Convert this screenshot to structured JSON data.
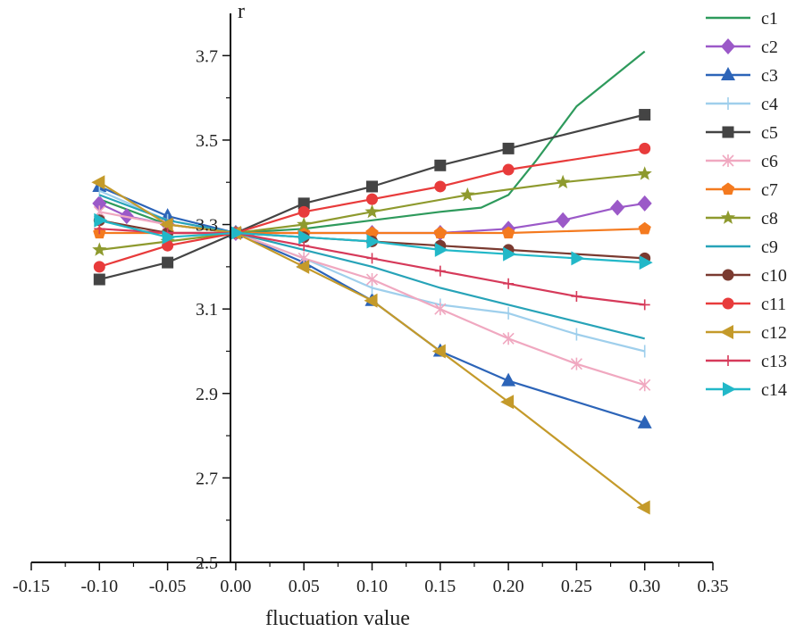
{
  "chart_data": {
    "type": "line",
    "title": "",
    "xlabel": "fluctuation value",
    "ylabel": "r",
    "xlim": [
      -0.15,
      0.35
    ],
    "ylim": [
      2.5,
      3.8
    ],
    "x_ticks": [
      -0.15,
      -0.1,
      -0.05,
      0.0,
      0.05,
      0.1,
      0.15,
      0.2,
      0.25,
      0.3,
      0.35
    ],
    "x_tick_labels": [
      "-0.15",
      "-0.10",
      "-0.05",
      "0.00",
      "0.05",
      "0.10",
      "0.15",
      "0.20",
      "0.25",
      "0.30",
      "0.35"
    ],
    "y_ticks": [
      2.5,
      2.7,
      2.9,
      3.1,
      3.3,
      3.5,
      3.7
    ],
    "y_tick_labels": [
      "2.5",
      "2.7",
      "2.9",
      "3.1",
      "3.3",
      "3.5",
      "3.7"
    ],
    "grid": false,
    "legend_position": "right",
    "series": [
      {
        "name": "c1",
        "color": "#2e9a5c",
        "marker": "none",
        "points": [
          [
            -0.1,
            3.36
          ],
          [
            -0.05,
            3.3
          ],
          [
            0.0,
            3.28
          ],
          [
            0.05,
            3.29
          ],
          [
            0.1,
            3.31
          ],
          [
            0.15,
            3.33
          ],
          [
            0.18,
            3.34
          ],
          [
            0.2,
            3.37
          ],
          [
            0.22,
            3.45
          ],
          [
            0.25,
            3.58
          ],
          [
            0.3,
            3.71
          ]
        ]
      },
      {
        "name": "c2",
        "color": "#9b59c8",
        "marker": "diamond",
        "points": [
          [
            -0.1,
            3.35
          ],
          [
            -0.08,
            3.32
          ],
          [
            -0.05,
            3.3
          ],
          [
            0.0,
            3.28
          ],
          [
            0.05,
            3.28
          ],
          [
            0.1,
            3.28
          ],
          [
            0.15,
            3.28
          ],
          [
            0.2,
            3.29
          ],
          [
            0.24,
            3.31
          ],
          [
            0.28,
            3.34
          ],
          [
            0.3,
            3.35
          ]
        ]
      },
      {
        "name": "c3",
        "color": "#2c64b8",
        "marker": "triangle-up",
        "points": [
          [
            -0.1,
            3.39
          ],
          [
            -0.05,
            3.32
          ],
          [
            0.0,
            3.28
          ],
          [
            0.05,
            3.21
          ],
          [
            0.1,
            3.12
          ],
          [
            0.15,
            3.0
          ],
          [
            0.2,
            2.93
          ],
          [
            0.3,
            2.83
          ]
        ]
      },
      {
        "name": "c4",
        "color": "#9fcfec",
        "marker": "bar",
        "points": [
          [
            -0.1,
            3.38
          ],
          [
            -0.05,
            3.31
          ],
          [
            0.0,
            3.28
          ],
          [
            0.05,
            3.22
          ],
          [
            0.1,
            3.15
          ],
          [
            0.15,
            3.11
          ],
          [
            0.2,
            3.09
          ],
          [
            0.25,
            3.04
          ],
          [
            0.3,
            3.0
          ]
        ]
      },
      {
        "name": "c5",
        "color": "#444444",
        "marker": "square",
        "points": [
          [
            -0.1,
            3.17
          ],
          [
            -0.05,
            3.21
          ],
          [
            0.0,
            3.28
          ],
          [
            0.05,
            3.35
          ],
          [
            0.1,
            3.39
          ],
          [
            0.15,
            3.44
          ],
          [
            0.2,
            3.48
          ],
          [
            0.3,
            3.56
          ]
        ]
      },
      {
        "name": "c6",
        "color": "#f0a8c0",
        "marker": "x",
        "points": [
          [
            -0.1,
            3.33
          ],
          [
            -0.05,
            3.3
          ],
          [
            0.0,
            3.28
          ],
          [
            0.05,
            3.22
          ],
          [
            0.1,
            3.17
          ],
          [
            0.15,
            3.1
          ],
          [
            0.2,
            3.03
          ],
          [
            0.25,
            2.97
          ],
          [
            0.3,
            2.92
          ]
        ]
      },
      {
        "name": "c7",
        "color": "#f47a1f",
        "marker": "pentagon",
        "points": [
          [
            -0.1,
            3.28
          ],
          [
            -0.05,
            3.28
          ],
          [
            0.0,
            3.28
          ],
          [
            0.05,
            3.28
          ],
          [
            0.1,
            3.28
          ],
          [
            0.15,
            3.28
          ],
          [
            0.2,
            3.28
          ],
          [
            0.3,
            3.29
          ]
        ]
      },
      {
        "name": "c8",
        "color": "#8e9a2e",
        "marker": "star",
        "points": [
          [
            -0.1,
            3.24
          ],
          [
            -0.05,
            3.26
          ],
          [
            0.0,
            3.28
          ],
          [
            0.05,
            3.3
          ],
          [
            0.1,
            3.33
          ],
          [
            0.17,
            3.37
          ],
          [
            0.24,
            3.4
          ],
          [
            0.3,
            3.42
          ]
        ]
      },
      {
        "name": "c9",
        "color": "#27a3b8",
        "marker": "none",
        "points": [
          [
            -0.1,
            3.37
          ],
          [
            -0.05,
            3.31
          ],
          [
            0.0,
            3.28
          ],
          [
            0.05,
            3.24
          ],
          [
            0.1,
            3.2
          ],
          [
            0.15,
            3.15
          ],
          [
            0.2,
            3.11
          ],
          [
            0.25,
            3.07
          ],
          [
            0.3,
            3.03
          ]
        ]
      },
      {
        "name": "c10",
        "color": "#7a3a30",
        "marker": "circle",
        "points": [
          [
            -0.1,
            3.31
          ],
          [
            -0.05,
            3.28
          ],
          [
            0.0,
            3.28
          ],
          [
            0.05,
            3.27
          ],
          [
            0.1,
            3.26
          ],
          [
            0.15,
            3.25
          ],
          [
            0.2,
            3.24
          ],
          [
            0.3,
            3.22
          ]
        ]
      },
      {
        "name": "c11",
        "color": "#e83b3b",
        "marker": "circle",
        "points": [
          [
            -0.1,
            3.2
          ],
          [
            -0.05,
            3.25
          ],
          [
            0.0,
            3.28
          ],
          [
            0.05,
            3.33
          ],
          [
            0.1,
            3.36
          ],
          [
            0.15,
            3.39
          ],
          [
            0.2,
            3.43
          ],
          [
            0.3,
            3.48
          ]
        ]
      },
      {
        "name": "c12",
        "color": "#c49a2a",
        "marker": "triangle-left",
        "points": [
          [
            -0.1,
            3.4
          ],
          [
            -0.05,
            3.3
          ],
          [
            0.0,
            3.28
          ],
          [
            0.05,
            3.2
          ],
          [
            0.1,
            3.12
          ],
          [
            0.15,
            3.0
          ],
          [
            0.2,
            2.88
          ],
          [
            0.3,
            2.63
          ]
        ]
      },
      {
        "name": "c13",
        "color": "#d63a5a",
        "marker": "plus",
        "points": [
          [
            -0.1,
            3.29
          ],
          [
            -0.05,
            3.28
          ],
          [
            0.0,
            3.28
          ],
          [
            0.05,
            3.25
          ],
          [
            0.1,
            3.22
          ],
          [
            0.15,
            3.19
          ],
          [
            0.2,
            3.16
          ],
          [
            0.25,
            3.13
          ],
          [
            0.3,
            3.11
          ]
        ]
      },
      {
        "name": "c14",
        "color": "#22b8c8",
        "marker": "triangle-right",
        "points": [
          [
            -0.1,
            3.31
          ],
          [
            -0.05,
            3.27
          ],
          [
            0.0,
            3.28
          ],
          [
            0.05,
            3.27
          ],
          [
            0.1,
            3.26
          ],
          [
            0.15,
            3.24
          ],
          [
            0.2,
            3.23
          ],
          [
            0.25,
            3.22
          ],
          [
            0.3,
            3.21
          ]
        ]
      }
    ]
  }
}
